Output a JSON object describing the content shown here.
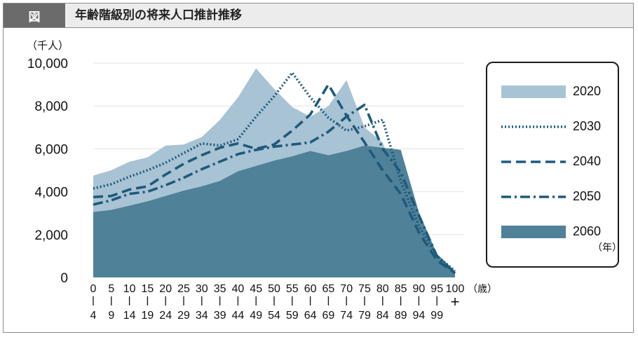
{
  "header": {
    "fig_label": "図",
    "title": "年齢階級別の将来人口推計推移"
  },
  "legend": {
    "unit": "（年）"
  },
  "chart_data": {
    "type": "area",
    "unit_label": "（千人）",
    "x_suffix": "（歳）",
    "y_ticks": [
      0,
      2000,
      4000,
      6000,
      8000,
      10000
    ],
    "y_tick_labels": [
      "0",
      "2,000",
      "4,000",
      "6,000",
      "8,000",
      "10,000"
    ],
    "ylim": [
      0,
      10000
    ],
    "grid": true,
    "legend_position": "right",
    "categories": [
      {
        "top": "0",
        "bottom": "4"
      },
      {
        "top": "5",
        "bottom": "9"
      },
      {
        "top": "10",
        "bottom": "14"
      },
      {
        "top": "15",
        "bottom": "19"
      },
      {
        "top": "20",
        "bottom": "24"
      },
      {
        "top": "25",
        "bottom": "29"
      },
      {
        "top": "30",
        "bottom": "34"
      },
      {
        "top": "35",
        "bottom": "39"
      },
      {
        "top": "40",
        "bottom": "44"
      },
      {
        "top": "45",
        "bottom": "49"
      },
      {
        "top": "50",
        "bottom": "54"
      },
      {
        "top": "55",
        "bottom": "59"
      },
      {
        "top": "60",
        "bottom": "64"
      },
      {
        "top": "65",
        "bottom": "69"
      },
      {
        "top": "70",
        "bottom": "74"
      },
      {
        "top": "75",
        "bottom": "79"
      },
      {
        "top": "80",
        "bottom": "84"
      },
      {
        "top": "85",
        "bottom": "89"
      },
      {
        "top": "90",
        "bottom": "94"
      },
      {
        "top": "95",
        "bottom": "99"
      },
      {
        "top": "100",
        "bottom": "+"
      }
    ],
    "series": [
      {
        "name": "2020",
        "style": "area",
        "color": "#a8c3d4",
        "values": [
          4750,
          5000,
          5400,
          5600,
          6150,
          6200,
          6550,
          7350,
          8400,
          9750,
          8800,
          7950,
          7500,
          8000,
          9200,
          7000,
          6300,
          4100,
          2300,
          900,
          250
        ]
      },
      {
        "name": "2030",
        "style": "dotted",
        "color": "#1e5a7a",
        "values": [
          4150,
          4350,
          4700,
          5000,
          5350,
          5800,
          6250,
          6150,
          6450,
          7500,
          8450,
          9550,
          8400,
          7450,
          6850,
          7050,
          7350,
          4500,
          2400,
          1000,
          300
        ]
      },
      {
        "name": "2040",
        "style": "dashed",
        "color": "#1e5a7a",
        "values": [
          3750,
          3800,
          4100,
          4250,
          4800,
          5300,
          5700,
          6050,
          6250,
          6000,
          6200,
          6850,
          7600,
          9000,
          7550,
          6300,
          5000,
          3900,
          2100,
          800,
          200
        ]
      },
      {
        "name": "2050",
        "style": "dashdot",
        "color": "#1e5a7a",
        "values": [
          3400,
          3600,
          3900,
          4000,
          4300,
          4650,
          5050,
          5400,
          5750,
          5950,
          6100,
          6200,
          6300,
          6800,
          7500,
          8050,
          6000,
          4900,
          2900,
          1000,
          200
        ]
      },
      {
        "name": "2060",
        "style": "area",
        "color": "#4f8199",
        "values": [
          3050,
          3150,
          3350,
          3550,
          3800,
          4050,
          4250,
          4500,
          4950,
          5200,
          5450,
          5650,
          5900,
          5700,
          5900,
          6150,
          6050,
          5950,
          3050,
          1100,
          300
        ]
      }
    ]
  }
}
